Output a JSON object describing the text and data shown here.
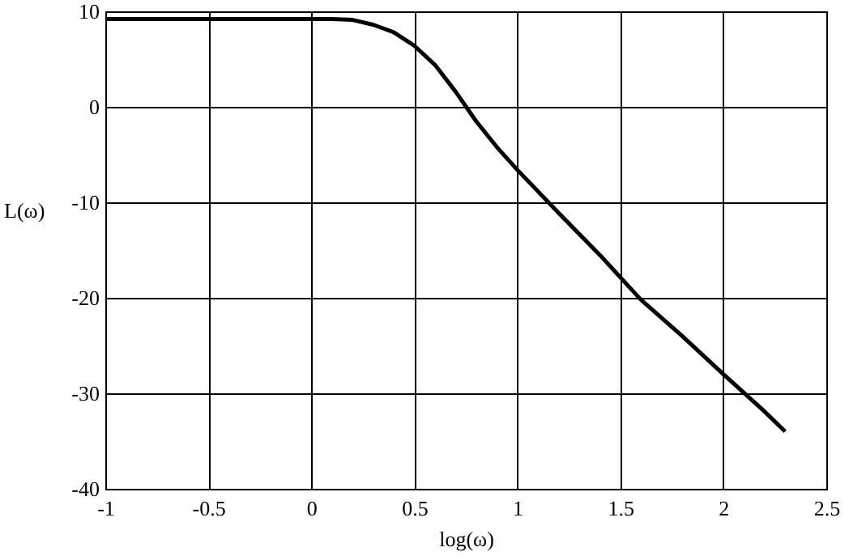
{
  "chart_data": {
    "type": "line",
    "xlabel": "log(ω)",
    "ylabel": "L(ω)",
    "x": [
      -1,
      -0.5,
      0,
      0.1,
      0.2,
      0.3,
      0.4,
      0.5,
      0.6,
      0.7,
      0.8,
      0.9,
      1,
      1.2,
      1.4,
      1.6,
      1.8,
      2,
      2.2,
      2.3
    ],
    "series": [
      {
        "color": "#000000",
        "values": [
          9.2,
          9.2,
          9.2,
          9.2,
          9.1,
          8.6,
          7.8,
          6.4,
          4.4,
          1.6,
          -1.5,
          -4.2,
          -6.6,
          -11.1,
          -15.5,
          -20.2,
          -24,
          -28,
          -31.9,
          -34
        ]
      }
    ],
    "xlim": [
      -1,
      2.5
    ],
    "xticks": [
      -1,
      -0.5,
      0,
      0.5,
      1,
      1.5,
      2,
      2.5
    ],
    "ylim": [
      -40,
      10
    ],
    "yticks": [
      -40,
      -30,
      -20,
      -10,
      0,
      10
    ],
    "grid": true,
    "line_style": "solid",
    "marker": "none"
  }
}
